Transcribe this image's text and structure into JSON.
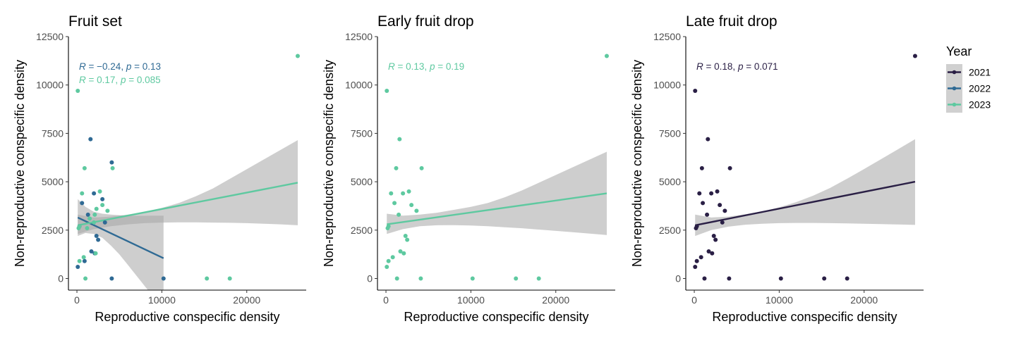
{
  "legend": {
    "title": "Year",
    "items": [
      {
        "label": "2021",
        "color": "#2a1f45"
      },
      {
        "label": "2022",
        "color": "#2f6a94"
      },
      {
        "label": "2023",
        "color": "#5ec9a0"
      }
    ]
  },
  "chart_data": [
    {
      "type": "scatter",
      "title": "Fruit set",
      "xlabel": "Reproductive conspecific density",
      "ylabel": "Non-reproductive conspecific density",
      "xlim": [
        -1000,
        27000
      ],
      "ylim": [
        -600,
        12500
      ],
      "x_ticks": [
        0,
        10000,
        20000
      ],
      "x_tick_labels": [
        "0",
        "10000",
        "20000"
      ],
      "y_ticks": [
        0,
        2500,
        5000,
        7500,
        10000,
        12500
      ],
      "y_tick_labels": [
        "0",
        "2500",
        "5000",
        "7500",
        "10000",
        "12500"
      ],
      "grid": false,
      "series": [
        {
          "name": "2022",
          "color": "#2f6a94",
          "points": [
            [
              100,
              600
            ],
            [
              300,
              2700
            ],
            [
              600,
              3900
            ],
            [
              900,
              900
            ],
            [
              1300,
              3300
            ],
            [
              1600,
              7200
            ],
            [
              1700,
              1400
            ],
            [
              2000,
              4400
            ],
            [
              2100,
              1300
            ],
            [
              2300,
              2200
            ],
            [
              2500,
              2000
            ],
            [
              3000,
              4100
            ],
            [
              3300,
              2900
            ],
            [
              4100,
              6000
            ],
            [
              4100,
              0
            ],
            [
              10200,
              0
            ]
          ],
          "fit": [
            [
              100,
              3150
            ],
            [
              10200,
              1050
            ]
          ],
          "band": {
            "x": [
              100,
              1000,
              2000,
              3000,
              4000,
              5000,
              6000,
              7000,
              8000,
              9000,
              10200
            ],
            "lower": [
              2200,
              2350,
              2300,
              2100,
              1700,
              1250,
              700,
              150,
              -400,
              -950,
              -1600
            ],
            "upper": [
              4100,
              3700,
              3450,
              3350,
              3300,
              3270,
              3250,
              3240,
              3240,
              3250,
              3250
            ]
          },
          "annotation": {
            "r": "−0.24",
            "p": "0.13"
          }
        },
        {
          "name": "2023",
          "color": "#5ec9a0",
          "points": [
            [
              100,
              9700
            ],
            [
              200,
              2600
            ],
            [
              300,
              2700
            ],
            [
              300,
              900
            ],
            [
              600,
              4400
            ],
            [
              800,
              1100
            ],
            [
              900,
              5700
            ],
            [
              1000,
              0
            ],
            [
              1200,
              2600
            ],
            [
              1500,
              3100
            ],
            [
              2000,
              2900
            ],
            [
              2100,
              3300
            ],
            [
              2200,
              1300
            ],
            [
              2300,
              3600
            ],
            [
              2700,
              4500
            ],
            [
              3000,
              3800
            ],
            [
              3600,
              3500
            ],
            [
              4200,
              5700
            ],
            [
              15300,
              0
            ],
            [
              18000,
              0
            ],
            [
              26000,
              11500
            ]
          ],
          "fit": [
            [
              100,
              2750
            ],
            [
              26000,
              4950
            ]
          ],
          "band": {
            "x": [
              100,
              2000,
              4000,
              6000,
              8000,
              10000,
              12000,
              14000,
              16000,
              18000,
              20000,
              22000,
              24000,
              26000
            ],
            "lower": [
              2300,
              2550,
              2700,
              2800,
              2860,
              2890,
              2900,
              2900,
              2890,
              2880,
              2860,
              2830,
              2800,
              2750
            ],
            "upper": [
              3300,
              3150,
              3200,
              3300,
              3450,
              3650,
              3900,
              4250,
              4650,
              5150,
              5650,
              6150,
              6650,
              7150
            ]
          },
          "annotation": {
            "r": "0.17",
            "p": "0.085"
          }
        }
      ]
    },
    {
      "type": "scatter",
      "title": "Early fruit drop",
      "xlabel": "Reproductive conspecific density",
      "ylabel": "Non-reproductive conspecific density",
      "xlim": [
        -1000,
        27000
      ],
      "ylim": [
        -600,
        12500
      ],
      "x_ticks": [
        0,
        10000,
        20000
      ],
      "x_tick_labels": [
        "0",
        "10000",
        "20000"
      ],
      "y_ticks": [
        0,
        2500,
        5000,
        7500,
        10000,
        12500
      ],
      "y_tick_labels": [
        "0",
        "2500",
        "5000",
        "7500",
        "10000",
        "12500"
      ],
      "grid": false,
      "series": [
        {
          "name": "2023",
          "color": "#5ec9a0",
          "points": [
            [
              100,
              9700
            ],
            [
              200,
              2600
            ],
            [
              300,
              2700
            ],
            [
              300,
              900
            ],
            [
              600,
              4400
            ],
            [
              100,
              600
            ],
            [
              800,
              1100
            ],
            [
              1000,
              3900
            ],
            [
              1200,
              5700
            ],
            [
              1500,
              3300
            ],
            [
              1600,
              7200
            ],
            [
              1700,
              1400
            ],
            [
              2000,
              4400
            ],
            [
              2100,
              1300
            ],
            [
              2300,
              2200
            ],
            [
              2500,
              2000
            ],
            [
              2700,
              4500
            ],
            [
              3000,
              3800
            ],
            [
              3600,
              3500
            ],
            [
              4200,
              5700
            ],
            [
              1300,
              0
            ],
            [
              4100,
              0
            ],
            [
              10200,
              0
            ],
            [
              15300,
              0
            ],
            [
              18000,
              0
            ],
            [
              26000,
              11500
            ]
          ],
          "fit": [
            [
              100,
              2800
            ],
            [
              26000,
              4400
            ]
          ],
          "band": {
            "x": [
              100,
              2000,
              4000,
              6000,
              8000,
              10000,
              12000,
              14000,
              16000,
              18000,
              20000,
              22000,
              24000,
              26000
            ],
            "lower": [
              2300,
              2550,
              2700,
              2750,
              2760,
              2740,
              2700,
              2650,
              2600,
              2530,
              2460,
              2390,
              2320,
              2250
            ],
            "upper": [
              3350,
              3250,
              3300,
              3400,
              3550,
              3700,
              3900,
              4200,
              4550,
              4950,
              5350,
              5750,
              6150,
              6550
            ]
          },
          "annotation": {
            "r": "0.13",
            "p": "0.19"
          }
        }
      ]
    },
    {
      "type": "scatter",
      "title": "Late fruit drop",
      "xlabel": "Reproductive conspecific density",
      "ylabel": "Non-reproductive conspecific density",
      "xlim": [
        -1000,
        27000
      ],
      "ylim": [
        -600,
        12500
      ],
      "x_ticks": [
        0,
        10000,
        20000
      ],
      "x_tick_labels": [
        "0",
        "10000",
        "20000"
      ],
      "y_ticks": [
        0,
        2500,
        5000,
        7500,
        10000,
        12500
      ],
      "y_tick_labels": [
        "0",
        "2500",
        "5000",
        "7500",
        "10000",
        "12500"
      ],
      "grid": false,
      "series": [
        {
          "name": "2021",
          "color": "#2a1f45",
          "points": [
            [
              100,
              9700
            ],
            [
              200,
              2600
            ],
            [
              300,
              2700
            ],
            [
              300,
              900
            ],
            [
              600,
              4400
            ],
            [
              100,
              600
            ],
            [
              800,
              1100
            ],
            [
              900,
              5700
            ],
            [
              1000,
              3900
            ],
            [
              1200,
              0
            ],
            [
              1500,
              3300
            ],
            [
              1600,
              7200
            ],
            [
              1700,
              1400
            ],
            [
              2000,
              4400
            ],
            [
              2100,
              1300
            ],
            [
              2300,
              2200
            ],
            [
              2500,
              2000
            ],
            [
              2700,
              4500
            ],
            [
              3000,
              3800
            ],
            [
              3300,
              2900
            ],
            [
              3600,
              3500
            ],
            [
              4200,
              5700
            ],
            [
              4100,
              0
            ],
            [
              10200,
              0
            ],
            [
              15300,
              0
            ],
            [
              18000,
              0
            ],
            [
              26000,
              11500
            ]
          ],
          "fit": [
            [
              100,
              2750
            ],
            [
              26000,
              5000
            ]
          ],
          "band": {
            "x": [
              100,
              2000,
              4000,
              6000,
              8000,
              10000,
              12000,
              14000,
              16000,
              18000,
              20000,
              22000,
              24000,
              26000
            ],
            "lower": [
              2200,
              2500,
              2680,
              2780,
              2830,
              2860,
              2870,
              2870,
              2860,
              2850,
              2830,
              2810,
              2790,
              2770
            ],
            "upper": [
              3300,
              3150,
              3200,
              3320,
              3470,
              3680,
              3950,
              4280,
              4680,
              5160,
              5660,
              6170,
              6680,
              7200
            ]
          },
          "annotation": {
            "r": "0.18",
            "p": "0.071"
          }
        }
      ]
    }
  ]
}
